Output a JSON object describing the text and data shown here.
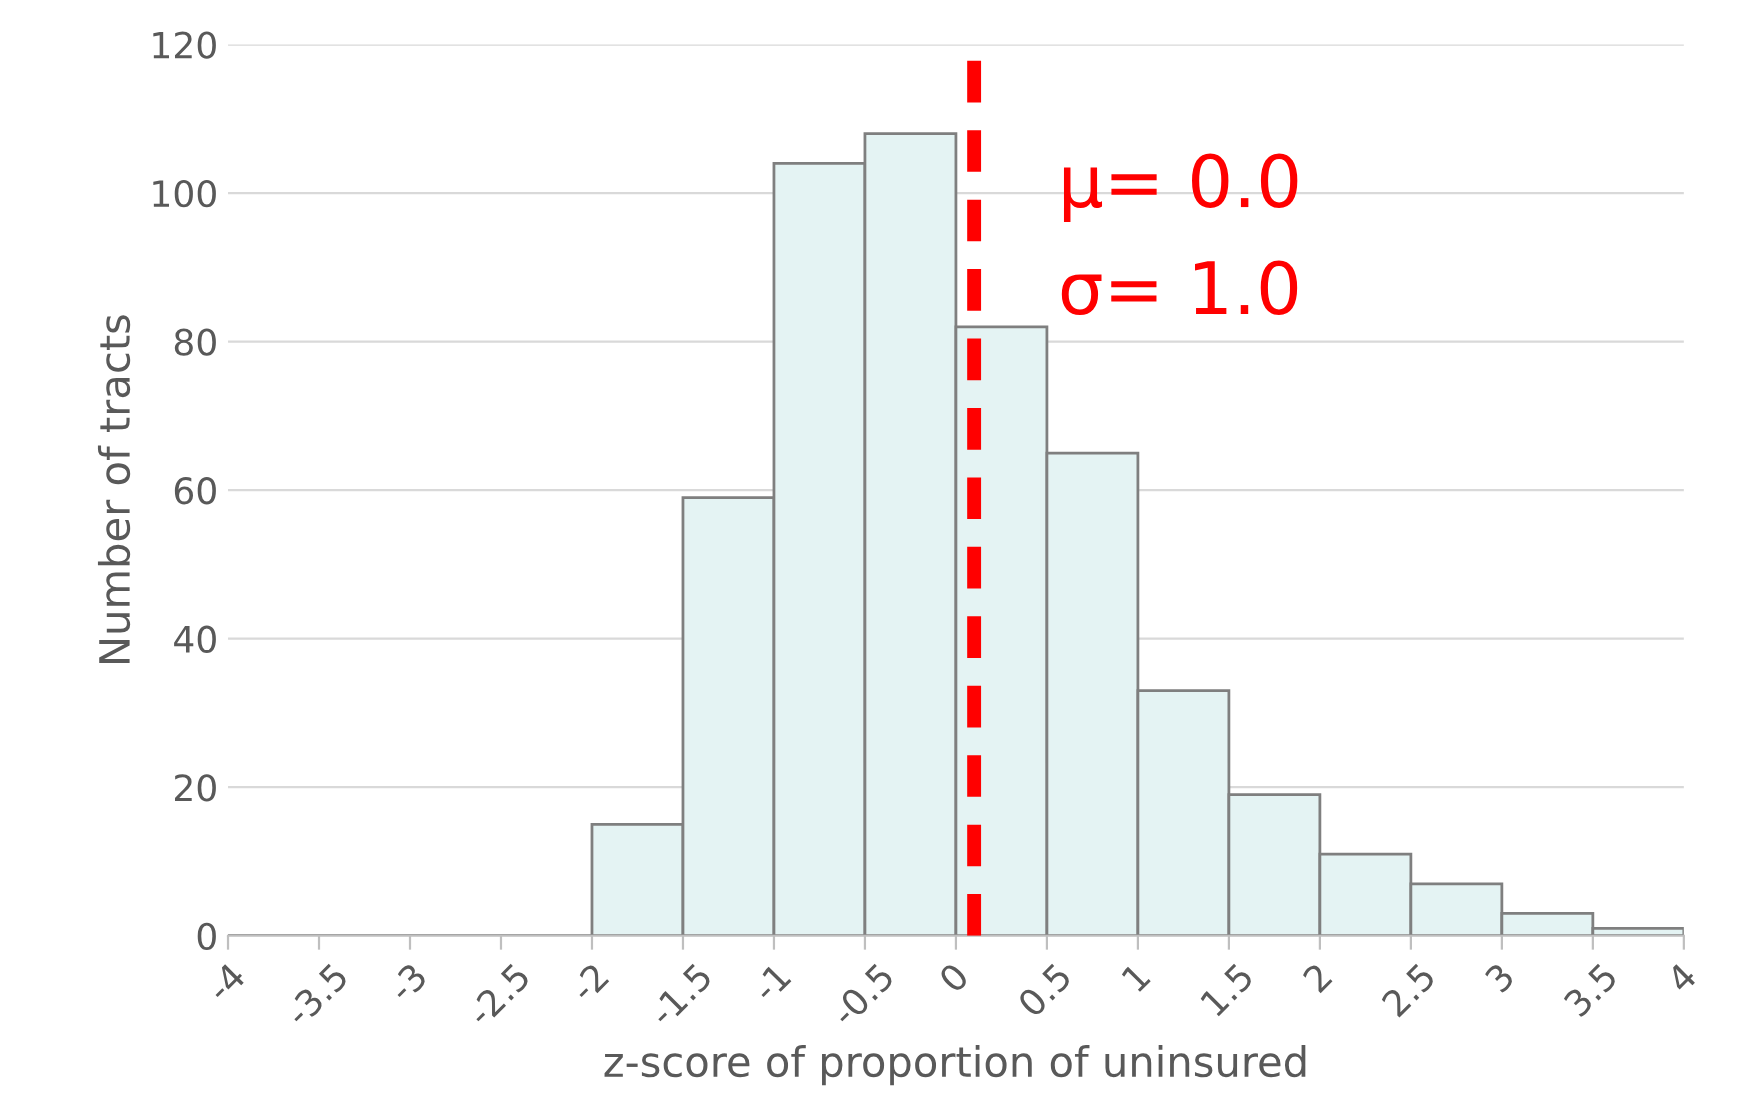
{
  "chart_data": {
    "type": "histogram",
    "xlabel": "z-score of proportion of uninsured",
    "ylabel": "Number of tracts",
    "bins": [
      -4,
      -3.5,
      -3,
      -2.5,
      -2,
      -1.5,
      -1,
      -0.5,
      0,
      0.5,
      1,
      1.5,
      2,
      2.5,
      3,
      3.5,
      4
    ],
    "values": [
      0,
      0,
      0,
      0,
      15,
      59,
      104,
      108,
      82,
      65,
      33,
      19,
      11,
      7,
      3,
      1
    ],
    "color": "#e4f3f3",
    "xlim": [
      -4,
      4
    ],
    "xticks": [
      -4,
      -3.5,
      -3,
      -2.5,
      -2,
      -1.5,
      -1,
      -0.5,
      0,
      0.5,
      1,
      1.5,
      2,
      2.5,
      3,
      3.5,
      4
    ],
    "ylim": [
      0,
      120
    ],
    "yticks": [
      0,
      20,
      40,
      60,
      80,
      100,
      120
    ],
    "grid": "y",
    "ref_lines": [
      {
        "axis": "x",
        "value": 0.1,
        "color": "#ff0000",
        "line_style": "dashed"
      }
    ],
    "annotations": [
      "μ= 0.0",
      "σ= 1.0"
    ]
  }
}
